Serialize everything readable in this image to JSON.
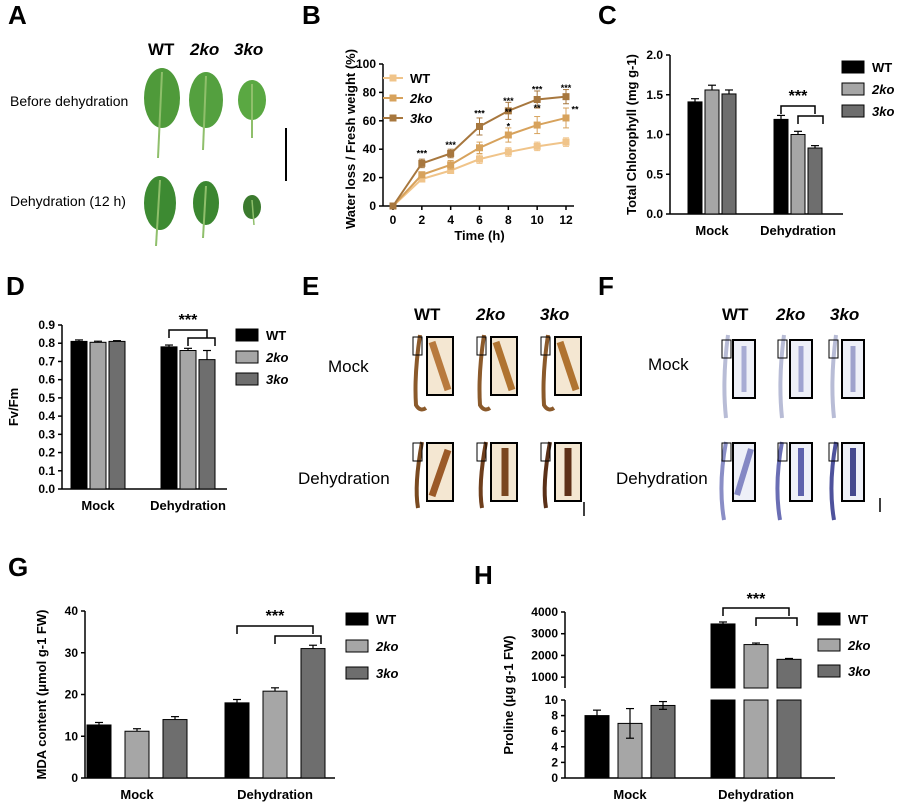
{
  "panels": {
    "A": {
      "letter": "A",
      "genotypes": [
        "WT",
        "2ko",
        "3ko"
      ],
      "rows": [
        "Before dehydration",
        "Dehydration (12 h)"
      ]
    },
    "B": {
      "letter": "B"
    },
    "C": {
      "letter": "C"
    },
    "D": {
      "letter": "D"
    },
    "E": {
      "letter": "E",
      "genotypes": [
        "WT",
        "2ko",
        "3ko"
      ],
      "rows": [
        "Mock",
        "Dehydration"
      ]
    },
    "F": {
      "letter": "F",
      "genotypes": [
        "WT",
        "2ko",
        "3ko"
      ],
      "rows": [
        "Mock",
        "Dehydration"
      ]
    },
    "G": {
      "letter": "G"
    },
    "H": {
      "letter": "H"
    }
  },
  "colors": {
    "WT": "#000000",
    "2ko": "#a6a6a6",
    "3ko": "#6e6e6e",
    "line_WT": "#f0c48a",
    "line_2ko": "#d7a25c",
    "line_3ko": "#a7773e"
  },
  "chart_data": [
    {
      "id": "B",
      "type": "line",
      "xlabel": "Time (h)",
      "ylabel": "Water loss /  Fresh weight (%)",
      "x": [
        0,
        2,
        4,
        6,
        8,
        10,
        12
      ],
      "xticks": [
        "0",
        "2",
        "4",
        "6",
        "8",
        "10",
        "12"
      ],
      "yticks": [
        "0",
        "20",
        "40",
        "60",
        "80",
        "100"
      ],
      "ylim": [
        0,
        100
      ],
      "series": [
        {
          "name": "WT",
          "values": [
            0,
            19,
            25,
            33,
            38,
            42,
            45
          ],
          "errors": [
            0,
            2,
            2,
            3,
            3,
            3,
            3
          ]
        },
        {
          "name": "2ko",
          "values": [
            0,
            22,
            29,
            41,
            50,
            57,
            62
          ],
          "errors": [
            0,
            2,
            3,
            4,
            5,
            6,
            7
          ]
        },
        {
          "name": "3ko",
          "values": [
            0,
            30,
            37,
            56,
            67,
            75,
            77
          ],
          "errors": [
            0,
            3,
            3,
            6,
            6,
            6,
            5
          ]
        }
      ],
      "annotations": [
        "***",
        "***",
        "***",
        "***",
        "***",
        "***",
        "**",
        "*",
        "**",
        "**"
      ],
      "legend": "top-left"
    },
    {
      "id": "C",
      "type": "bar",
      "ylabel": "Total Chlorophyll (mg g-1)",
      "categories": [
        "Mock",
        "Dehydration"
      ],
      "yticks": [
        "0.0",
        "0.5",
        "1.0",
        "1.5",
        "2.0"
      ],
      "ylim": [
        0,
        2.0
      ],
      "series": [
        {
          "name": "WT",
          "values": [
            1.41,
            1.19
          ],
          "errors": [
            0.04,
            0.05
          ]
        },
        {
          "name": "2ko",
          "values": [
            1.56,
            1.0
          ],
          "errors": [
            0.06,
            0.04
          ]
        },
        {
          "name": "3ko",
          "values": [
            1.51,
            0.83
          ],
          "errors": [
            0.05,
            0.03
          ]
        }
      ],
      "significance": "***",
      "legend": "right"
    },
    {
      "id": "D",
      "type": "bar",
      "ylabel": "Fv/Fm",
      "categories": [
        "Mock",
        "Dehydration"
      ],
      "yticks": [
        "0.0",
        "0.1",
        "0.2",
        "0.3",
        "0.4",
        "0.5",
        "0.6",
        "0.7",
        "0.8",
        "0.9"
      ],
      "ylim": [
        0,
        0.9
      ],
      "series": [
        {
          "name": "WT",
          "values": [
            0.81,
            0.78
          ],
          "errors": [
            0.008,
            0.01
          ]
        },
        {
          "name": "2ko",
          "values": [
            0.805,
            0.76
          ],
          "errors": [
            0.006,
            0.012
          ]
        },
        {
          "name": "3ko",
          "values": [
            0.81,
            0.71
          ],
          "errors": [
            0.004,
            0.05
          ]
        }
      ],
      "significance": "***",
      "legend": "right"
    },
    {
      "id": "G",
      "type": "bar",
      "ylabel": "MDA content (μmol g-1 FW)",
      "categories": [
        "Mock",
        "Dehydration"
      ],
      "yticks": [
        "0",
        "10",
        "20",
        "30",
        "40"
      ],
      "ylim": [
        0,
        40
      ],
      "series": [
        {
          "name": "WT",
          "values": [
            12.7,
            18.0
          ],
          "errors": [
            0.6,
            0.8
          ]
        },
        {
          "name": "2ko",
          "values": [
            11.2,
            20.8
          ],
          "errors": [
            0.6,
            0.8
          ]
        },
        {
          "name": "3ko",
          "values": [
            14.0,
            31.0
          ],
          "errors": [
            0.7,
            0.8
          ]
        }
      ],
      "significance": "***",
      "legend": "right"
    },
    {
      "id": "H",
      "type": "bar",
      "ylabel": "Proline (μg g-1 FW)",
      "categories": [
        "Mock",
        "Dehydration"
      ],
      "yticks_lower": [
        "0",
        "2",
        "4",
        "6",
        "8",
        "10"
      ],
      "yticks_upper": [
        "1000",
        "2000",
        "3000",
        "4000"
      ],
      "ylim_lower": [
        0,
        10
      ],
      "ylim_upper": [
        500,
        4000
      ],
      "series": [
        {
          "name": "WT",
          "values": [
            8.0,
            3450
          ],
          "errors": [
            0.7,
            90
          ]
        },
        {
          "name": "2ko",
          "values": [
            7.0,
            2500
          ],
          "errors": [
            1.9,
            70
          ]
        },
        {
          "name": "3ko",
          "values": [
            9.3,
            1820
          ],
          "errors": [
            0.5,
            40
          ]
        }
      ],
      "significance": "***",
      "legend": "right"
    }
  ]
}
